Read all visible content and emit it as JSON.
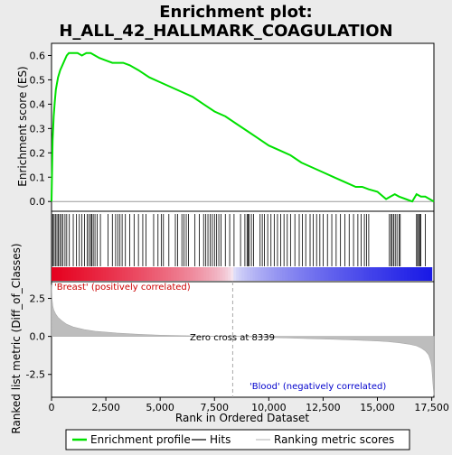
{
  "chart_data": {
    "type": "line",
    "title_line1": "Enrichment plot:",
    "title_line2": "H_ALL_42_HALLMARK_COAGULATION",
    "xlabel": "Rank in Ordered Dataset",
    "ylabel_top": "Enrichment score (ES)",
    "ylabel_bottom": "Ranked list metric (Diff_of_Classes)",
    "xlim": [
      0,
      17600
    ],
    "x_ticks": [
      0,
      2500,
      5000,
      7500,
      10000,
      12500,
      15000,
      17500
    ],
    "x_tick_labels": [
      "0",
      "2,500",
      "5,000",
      "7,500",
      "10,000",
      "12,500",
      "15,000",
      "17,500"
    ],
    "es_ylim": [
      -0.04,
      0.65
    ],
    "es_ticks": [
      0.0,
      0.1,
      0.2,
      0.3,
      0.4,
      0.5,
      0.6
    ],
    "es_tick_labels": [
      "0.0",
      "0.1",
      "0.2",
      "0.3",
      "0.4",
      "0.5",
      "0.6"
    ],
    "metric_ylim": [
      -4.0,
      3.6
    ],
    "metric_ticks": [
      2.5,
      0.0,
      -2.5
    ],
    "metric_tick_labels": [
      "2.5",
      "0.0",
      "-2.5"
    ],
    "zero_cross": 8339,
    "zero_cross_label": "Zero cross at 8339",
    "positive_label": "'Breast' (positively correlated)",
    "negative_label": "'Blood' (negatively correlated)",
    "legend": [
      {
        "label": "Enrichment profile",
        "color": "#00e000"
      },
      {
        "label": "Hits",
        "color": "#000000"
      },
      {
        "label": "Ranking metric scores",
        "color": "#bdbdbd"
      }
    ],
    "es_profile": {
      "x": [
        0,
        50,
        100,
        150,
        200,
        300,
        400,
        500,
        600,
        700,
        800,
        1000,
        1200,
        1400,
        1600,
        1800,
        2000,
        2200,
        2500,
        2800,
        3000,
        3300,
        3600,
        4000,
        4500,
        5000,
        5500,
        6000,
        6500,
        7000,
        7500,
        8000,
        8500,
        9000,
        9500,
        10000,
        10500,
        11000,
        11500,
        12000,
        12500,
        13000,
        13500,
        14000,
        14300,
        14600,
        15000,
        15400,
        15600,
        15800,
        16000,
        16300,
        16600,
        16800,
        17000,
        17200,
        17400,
        17600
      ],
      "y": [
        0.0,
        0.25,
        0.35,
        0.41,
        0.46,
        0.51,
        0.54,
        0.56,
        0.58,
        0.6,
        0.61,
        0.61,
        0.61,
        0.6,
        0.61,
        0.61,
        0.6,
        0.59,
        0.58,
        0.57,
        0.57,
        0.57,
        0.56,
        0.54,
        0.51,
        0.49,
        0.47,
        0.45,
        0.43,
        0.4,
        0.37,
        0.35,
        0.32,
        0.29,
        0.26,
        0.23,
        0.21,
        0.19,
        0.16,
        0.14,
        0.12,
        0.1,
        0.08,
        0.06,
        0.06,
        0.05,
        0.04,
        0.01,
        0.02,
        0.03,
        0.02,
        0.01,
        0.0,
        0.03,
        0.02,
        0.02,
        0.01,
        0.0
      ]
    },
    "hits": [
      10,
      60,
      120,
      180,
      250,
      310,
      380,
      450,
      520,
      620,
      700,
      820,
      1000,
      1150,
      1280,
      1400,
      1520,
      1640,
      1720,
      1800,
      1850,
      1920,
      2000,
      2100,
      2250,
      2600,
      2800,
      2950,
      3050,
      3150,
      3250,
      3400,
      3600,
      3800,
      4000,
      4200,
      4350,
      4700,
      4900,
      5050,
      5150,
      5400,
      5700,
      5800,
      6000,
      6100,
      6200,
      6300,
      6600,
      6800,
      7000,
      7100,
      7200,
      7300,
      7400,
      7500,
      7600,
      7700,
      7800,
      8000,
      8200,
      8400,
      8700,
      8900,
      9000,
      9050,
      9100,
      9200,
      9300,
      9600,
      9700,
      9800,
      9950,
      10100,
      10250,
      10400,
      10550,
      10700,
      10850,
      11000,
      11200,
      11400,
      11550,
      11700,
      11900,
      12050,
      12200,
      12350,
      12500,
      12700,
      12900,
      13100,
      13300,
      13500,
      13700,
      13900,
      14100,
      14250,
      14400,
      14500,
      14600,
      15550,
      15620,
      15680,
      15750,
      15820,
      15900,
      16000,
      16050,
      16800,
      16850,
      16900,
      16950,
      17000,
      17200
    ],
    "metric_curve": {
      "x": [
        0,
        20,
        60,
        100,
        200,
        300,
        500,
        700,
        1000,
        1500,
        2000,
        3000,
        4000,
        5000,
        6000,
        7000,
        8339,
        9000,
        10000,
        11000,
        12000,
        13000,
        14000,
        15000,
        15500,
        16000,
        16500,
        16800,
        17000,
        17200,
        17350,
        17450,
        17500,
        17550,
        17600
      ],
      "y": [
        3.4,
        2.5,
        2.0,
        1.75,
        1.45,
        1.25,
        1.0,
        0.8,
        0.62,
        0.45,
        0.34,
        0.22,
        0.14,
        0.08,
        0.05,
        0.02,
        0.0,
        -0.03,
        -0.07,
        -0.11,
        -0.15,
        -0.19,
        -0.24,
        -0.3,
        -0.35,
        -0.42,
        -0.52,
        -0.62,
        -0.75,
        -0.95,
        -1.2,
        -1.6,
        -2.0,
        -3.0,
        -3.9
      ]
    }
  }
}
